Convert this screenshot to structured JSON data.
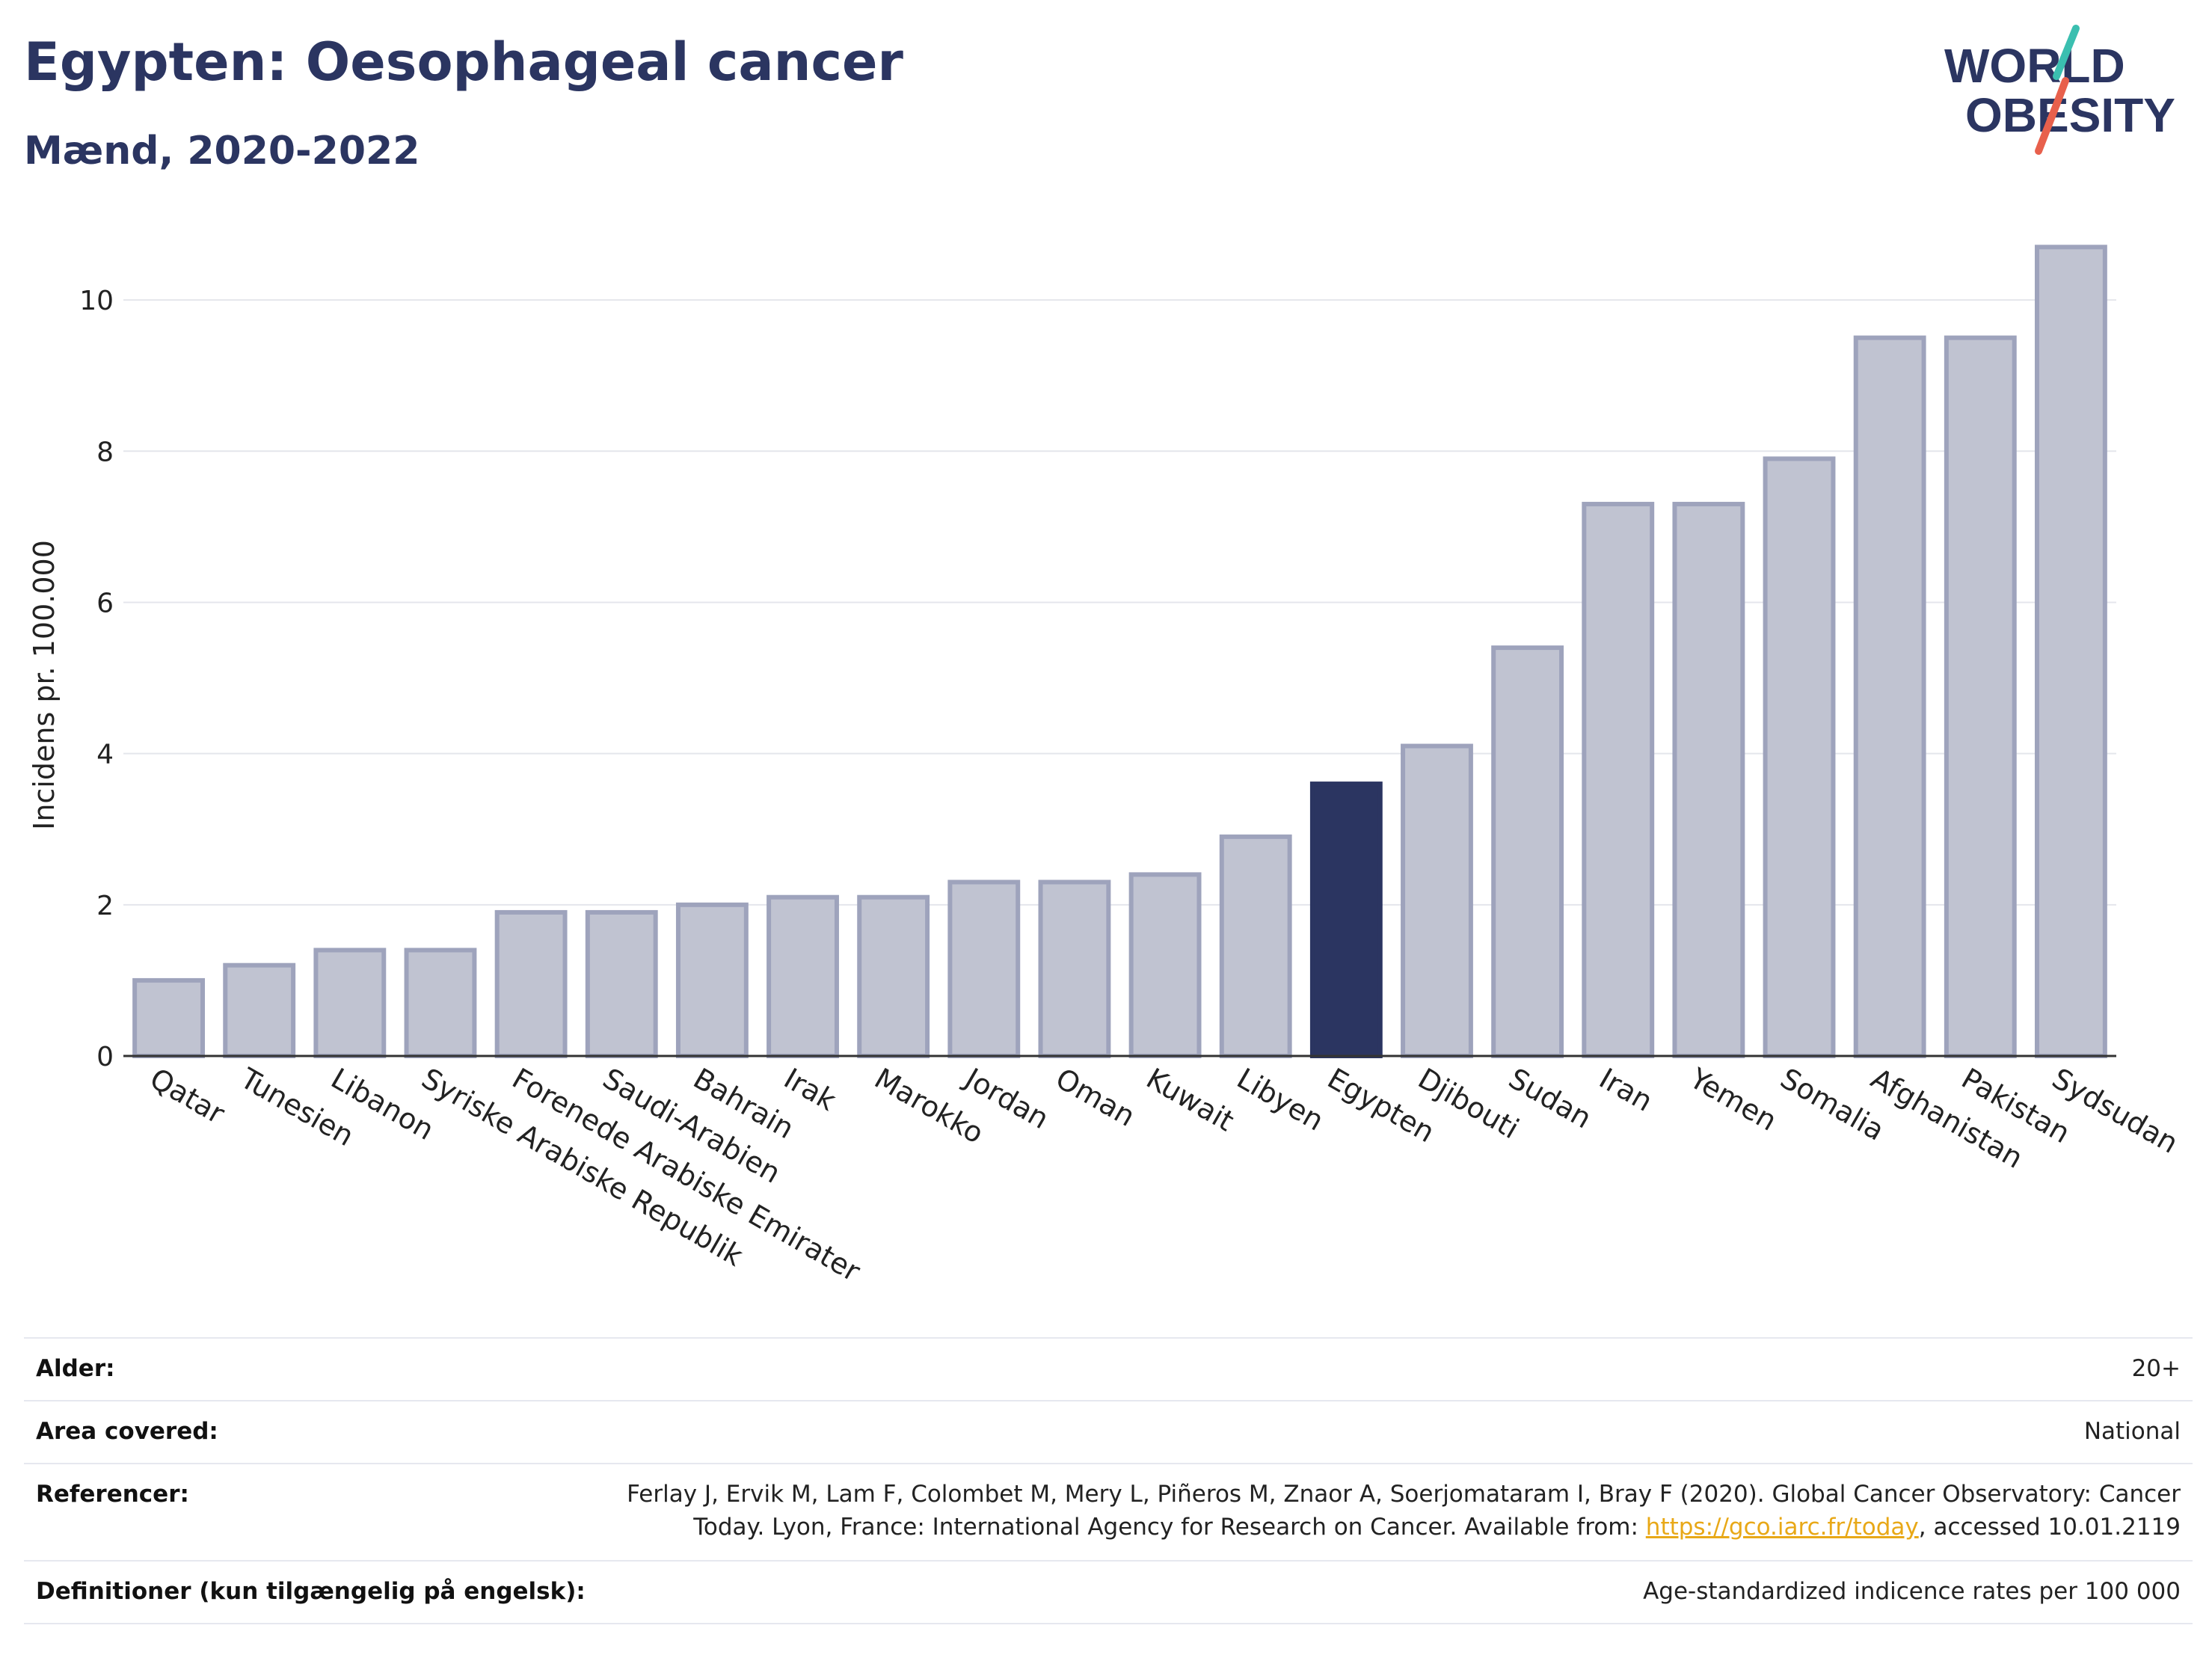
{
  "header": {
    "title": "Egypten: Oesophageal cancer",
    "subtitle": "Mænd, 2020-2022"
  },
  "logo": {
    "line1": "WORLD",
    "line2": "OBESITY",
    "accent_green": "#3bbfb0",
    "accent_red": "#e8604c",
    "text_color": "#2b3561"
  },
  "chart_data": {
    "type": "bar",
    "ylabel": "Incidens pr. 100.000",
    "xlabel": "",
    "ylim": [
      0,
      11
    ],
    "yticks": [
      0,
      2,
      4,
      6,
      8,
      10
    ],
    "grid": true,
    "highlight": "Egypten",
    "colors": {
      "bar": "#c0c3d1",
      "bar_border": "#9ea3bc",
      "highlight": "#2b3561"
    },
    "categories": [
      "Qatar",
      "Tunesien",
      "Libanon",
      "Syriske Arabiske Republik",
      "Forenede Arabiske Emirater",
      "Saudi-Arabien",
      "Bahrain",
      "Irak",
      "Marokko",
      "Jordan",
      "Oman",
      "Kuwait",
      "Libyen",
      "Egypten",
      "Djibouti",
      "Sudan",
      "Iran",
      "Yemen",
      "Somalia",
      "Afghanistan",
      "Pakistan",
      "Sydsudan"
    ],
    "values": [
      1.0,
      1.2,
      1.4,
      1.4,
      1.9,
      1.9,
      2.0,
      2.1,
      2.1,
      2.3,
      2.3,
      2.4,
      2.9,
      3.6,
      4.1,
      5.4,
      7.3,
      7.3,
      7.9,
      9.5,
      9.5,
      10.7
    ]
  },
  "meta": {
    "rows": [
      {
        "label": "Alder:",
        "value": "20+"
      },
      {
        "label": "Area covered:",
        "value": "National"
      },
      {
        "label": "Referencer:",
        "value_line1": "Ferlay J, Ervik M, Lam F, Colombet M, Mery L, Piñeros M, Znaor A, Soerjomataram I, Bray F (2020). Global Cancer Observatory: Cancer",
        "value_line2_pre": "Today. Lyon, France: International Agency for Research on Cancer. Available from: ",
        "link": "https://gco.iarc.fr/today",
        "value_line2_post": ", accessed 10.01.2119"
      },
      {
        "label": "Definitioner (kun tilgængelig på engelsk):",
        "value": "Age-standardized indicence rates per 100 000"
      }
    ]
  }
}
